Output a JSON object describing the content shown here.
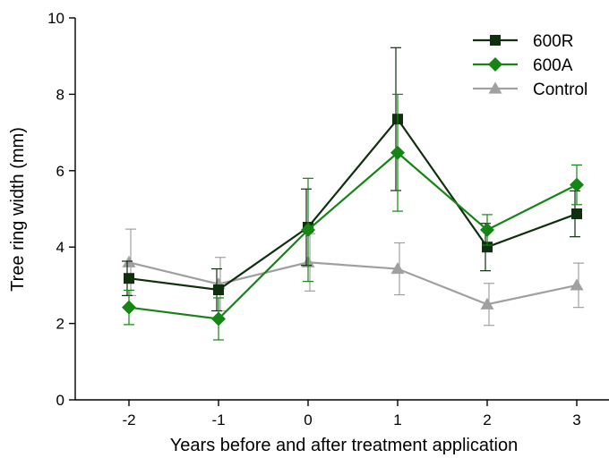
{
  "chart_data": {
    "type": "line",
    "title": "",
    "xlabel": "Years before and after treatment application",
    "ylabel": "Tree ring width (mm)",
    "x": [
      -2,
      -1,
      0,
      1,
      2,
      3
    ],
    "x_tick_labels": [
      "-2",
      "-1",
      "0",
      "1",
      "2",
      "3"
    ],
    "xlim": [
      -2.6,
      3.4
    ],
    "ylim": [
      0,
      10
    ],
    "y_ticks": [
      0,
      2,
      4,
      6,
      8,
      10
    ],
    "grid": false,
    "legend_position": "top-right",
    "series": [
      {
        "name": "600R",
        "color": "#0f2f0f",
        "marker": "square",
        "values": [
          3.18,
          2.88,
          4.52,
          7.35,
          4.0,
          4.87
        ],
        "error": [
          0.45,
          0.55,
          1.0,
          1.87,
          0.62,
          0.6
        ]
      },
      {
        "name": "600A",
        "color": "#158515",
        "marker": "diamond",
        "values": [
          2.42,
          2.12,
          4.45,
          6.47,
          4.45,
          5.63
        ],
        "error": [
          0.45,
          0.55,
          1.35,
          1.53,
          0.4,
          0.52
        ]
      },
      {
        "name": "Control",
        "color": "#a0a0a0",
        "marker": "triangle",
        "values": [
          3.6,
          3.03,
          3.6,
          3.43,
          2.5,
          3.0
        ],
        "error": [
          0.87,
          0.7,
          0.75,
          0.68,
          0.55,
          0.58
        ]
      }
    ]
  }
}
